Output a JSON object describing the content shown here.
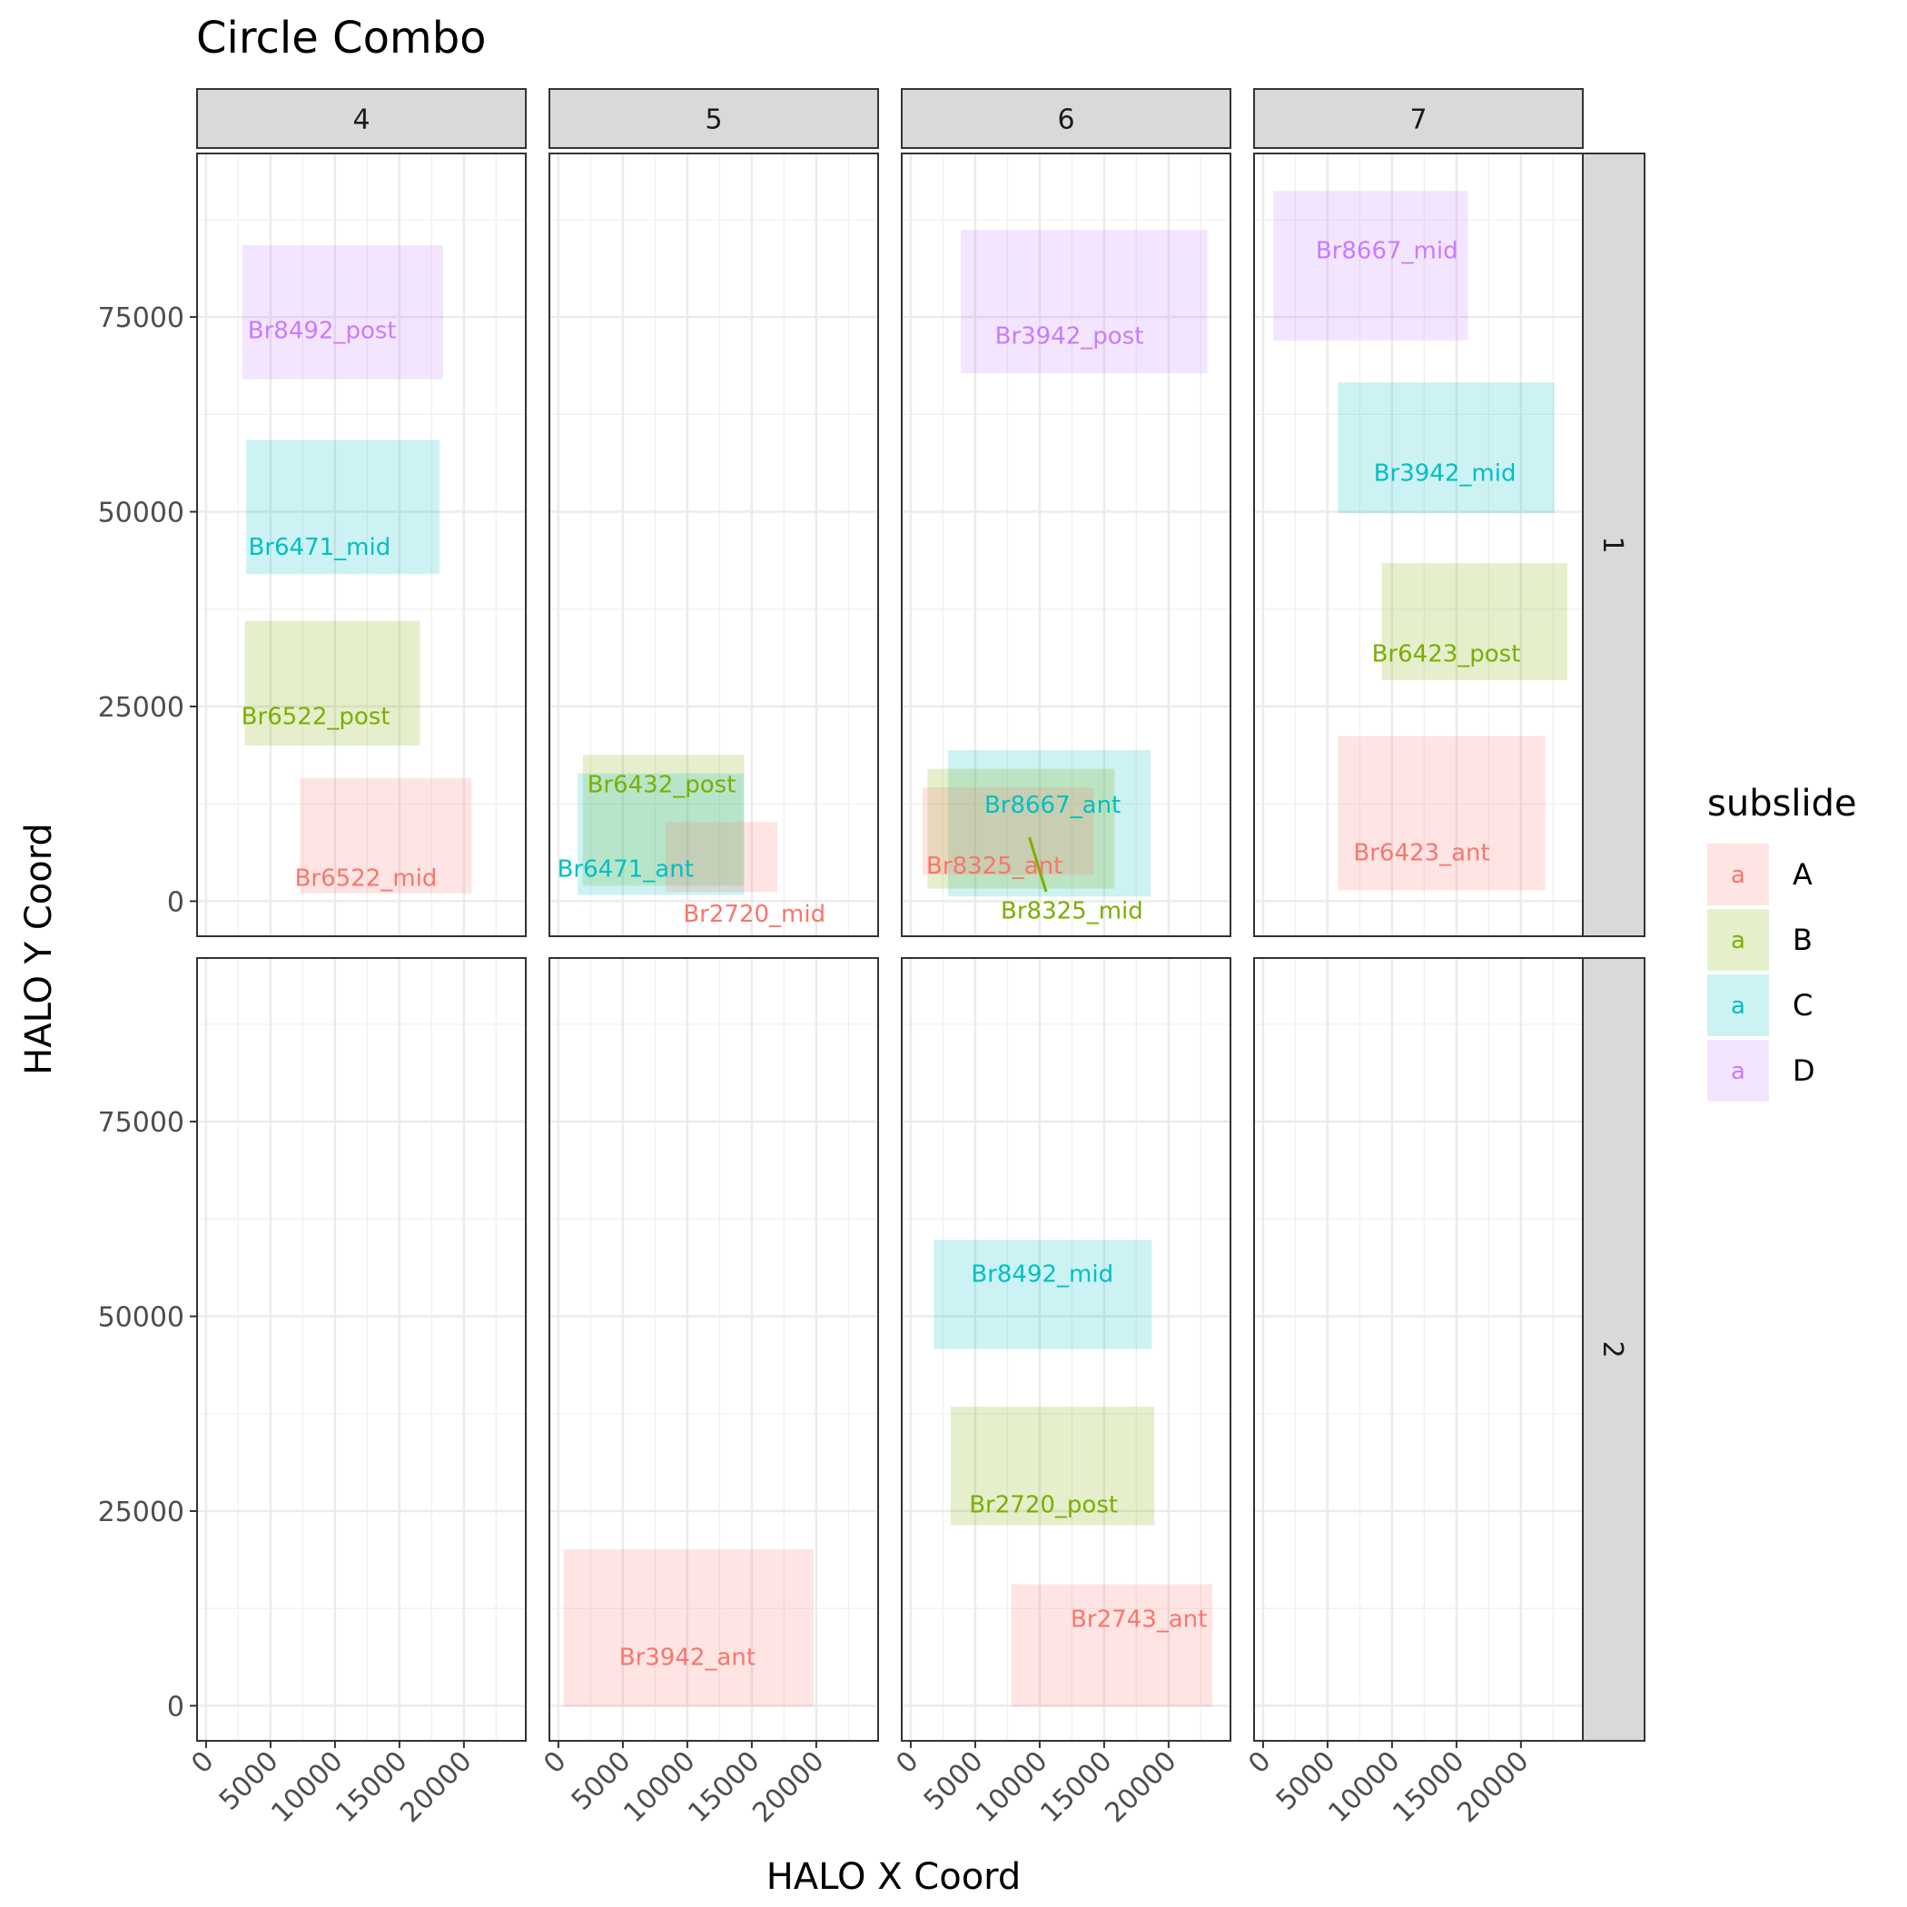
{
  "chart_data": {
    "type": "faceted-rect",
    "title": "Circle Combo",
    "xlabel": "HALO X Coord",
    "ylabel": "HALO Y Coord",
    "xlim": [
      -700,
      24800
    ],
    "ylim": [
      -4500,
      96000
    ],
    "x_ticks": [
      0,
      5000,
      10000,
      15000,
      20000
    ],
    "y_ticks": [
      0,
      25000,
      50000,
      75000
    ],
    "col_facets": [
      "4",
      "5",
      "6",
      "7"
    ],
    "row_facets": [
      "1",
      "2"
    ],
    "legend": {
      "title": "subslide",
      "key_glyph": "a",
      "position": "right",
      "items": [
        {
          "label": "A",
          "color": "#F8766D"
        },
        {
          "label": "B",
          "color": "#7CAE00"
        },
        {
          "label": "C",
          "color": "#00BFC4"
        },
        {
          "label": "D",
          "color": "#C77CFF"
        }
      ]
    },
    "rects": [
      {
        "col": "4",
        "row": "1",
        "subslide": "D",
        "label": "Br8492_post",
        "xmin": 2800,
        "xmax": 18400,
        "ymin": 67000,
        "ymax": 84200,
        "lx": 9000,
        "ly": 73300
      },
      {
        "col": "4",
        "row": "1",
        "subslide": "C",
        "label": "Br6471_mid",
        "xmin": 3100,
        "xmax": 18100,
        "ymin": 42000,
        "ymax": 59200,
        "lx": 8800,
        "ly": 45500
      },
      {
        "col": "4",
        "row": "1",
        "subslide": "B",
        "label": "Br6522_post",
        "xmin": 3000,
        "xmax": 16600,
        "ymin": 20000,
        "ymax": 36000,
        "lx": 8500,
        "ly": 23800
      },
      {
        "col": "4",
        "row": "1",
        "subslide": "A",
        "label": "Br6522_mid",
        "xmin": 7300,
        "xmax": 20600,
        "ymin": 1000,
        "ymax": 15800,
        "lx": 12400,
        "ly": 3000
      },
      {
        "col": "5",
        "row": "1",
        "subslide": "B",
        "label": "Br6432_post",
        "xmin": 1900,
        "xmax": 14400,
        "ymin": 2000,
        "ymax": 18800,
        "lx": 8000,
        "ly": 15000
      },
      {
        "col": "5",
        "row": "1",
        "subslide": "C",
        "label": "Br6471_ant",
        "xmin": 1500,
        "xmax": 14400,
        "ymin": 800,
        "ymax": 16400,
        "lx": 5200,
        "ly": 4200
      },
      {
        "col": "5",
        "row": "1",
        "subslide": "A",
        "label": "Br2720_mid",
        "xmin": 8300,
        "xmax": 17000,
        "ymin": 1200,
        "ymax": 10200,
        "lx": 15200,
        "ly": -1600
      },
      {
        "col": "6",
        "row": "1",
        "subslide": "D",
        "label": "Br3942_post",
        "xmin": 3900,
        "xmax": 23000,
        "ymin": 67800,
        "ymax": 86200,
        "lx": 12300,
        "ly": 72600
      },
      {
        "col": "6",
        "row": "1",
        "subslide": "C",
        "label": "Br8667_ant",
        "xmin": 2900,
        "xmax": 18600,
        "ymin": 600,
        "ymax": 19400,
        "lx": 11000,
        "ly": 12400
      },
      {
        "col": "6",
        "row": "1",
        "subslide": "B",
        "label": "Br8325_mid",
        "xmin": 1300,
        "xmax": 15800,
        "ymin": 1600,
        "ymax": 17000,
        "lx": 12500,
        "ly": -1200
      },
      {
        "col": "6",
        "row": "1",
        "subslide": "A",
        "label": "Br8325_ant",
        "xmin": 900,
        "xmax": 14200,
        "ymin": 3400,
        "ymax": 14600,
        "lx": 6500,
        "ly": 4600
      },
      {
        "col": "7",
        "row": "1",
        "subslide": "D",
        "label": "Br8667_mid",
        "xmin": 800,
        "xmax": 15900,
        "ymin": 72000,
        "ymax": 91200,
        "lx": 9600,
        "ly": 83600
      },
      {
        "col": "7",
        "row": "1",
        "subslide": "C",
        "label": "Br3942_mid",
        "xmin": 5800,
        "xmax": 22600,
        "ymin": 49800,
        "ymax": 66600,
        "lx": 14100,
        "ly": 55000
      },
      {
        "col": "7",
        "row": "1",
        "subslide": "B",
        "label": "Br6423_post",
        "xmin": 9200,
        "xmax": 23600,
        "ymin": 28400,
        "ymax": 43400,
        "lx": 14200,
        "ly": 31800
      },
      {
        "col": "7",
        "row": "1",
        "subslide": "A",
        "label": "Br6423_ant",
        "xmin": 5800,
        "xmax": 21900,
        "ymin": 1400,
        "ymax": 21200,
        "lx": 12300,
        "ly": 6300
      },
      {
        "col": "5",
        "row": "2",
        "subslide": "A",
        "label": "Br3942_ant",
        "xmin": 400,
        "xmax": 19800,
        "ymin": -100,
        "ymax": 20100,
        "lx": 10000,
        "ly": 6300
      },
      {
        "col": "6",
        "row": "2",
        "subslide": "C",
        "label": "Br8492_mid",
        "xmin": 1800,
        "xmax": 18700,
        "ymin": 45800,
        "ymax": 59800,
        "lx": 10200,
        "ly": 55500
      },
      {
        "col": "6",
        "row": "2",
        "subslide": "B",
        "label": "Br2720_post",
        "xmin": 3100,
        "xmax": 18900,
        "ymin": 23200,
        "ymax": 38400,
        "lx": 10300,
        "ly": 25900
      },
      {
        "col": "6",
        "row": "2",
        "subslide": "A",
        "label": "Br2743_ant",
        "xmin": 7800,
        "xmax": 23400,
        "ymin": -100,
        "ymax": 15600,
        "lx": 17700,
        "ly": 11200
      }
    ],
    "segments": [
      {
        "col": "6",
        "row": "1",
        "subslide": "B",
        "x1": 9200,
        "y1": 8200,
        "x2": 10500,
        "y2": 1200
      }
    ]
  }
}
